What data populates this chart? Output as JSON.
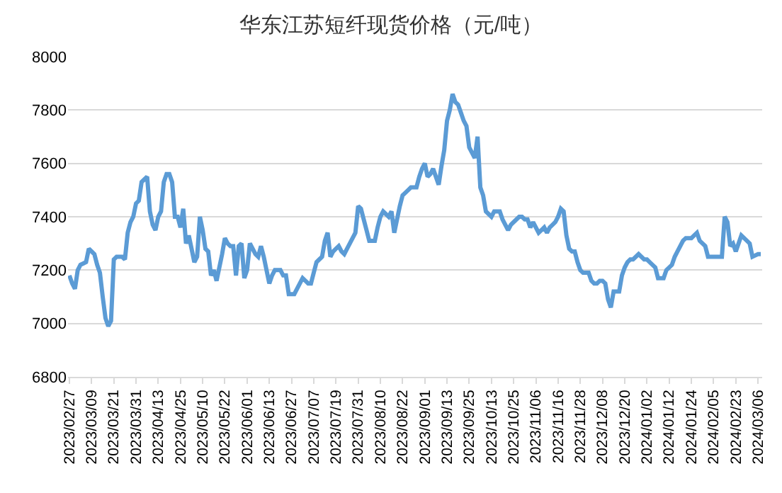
{
  "chart_data": {
    "type": "line",
    "title": "华东江苏短纤现货价格（元/吨）",
    "categories": [
      "2023/02/27",
      null,
      null,
      null,
      null,
      null,
      null,
      null,
      "2023/03/09",
      null,
      null,
      null,
      null,
      null,
      null,
      null,
      "2023/03/21",
      null,
      null,
      null,
      null,
      null,
      null,
      null,
      "2023/03/31",
      null,
      null,
      null,
      null,
      null,
      null,
      null,
      "2023/04/13",
      null,
      null,
      null,
      null,
      null,
      null,
      null,
      "2023/04/25",
      null,
      null,
      null,
      null,
      null,
      null,
      null,
      "2023/05/10",
      null,
      null,
      null,
      null,
      null,
      null,
      null,
      "2023/05/22",
      null,
      null,
      null,
      null,
      null,
      null,
      null,
      "2023/06/01",
      null,
      null,
      null,
      null,
      null,
      null,
      null,
      "2023/06/13",
      null,
      null,
      null,
      null,
      null,
      null,
      null,
      "2023/06/27",
      null,
      null,
      null,
      null,
      null,
      null,
      null,
      "2023/07/07",
      null,
      null,
      null,
      null,
      null,
      null,
      null,
      "2023/07/19",
      null,
      null,
      null,
      null,
      null,
      null,
      null,
      "2023/07/31",
      null,
      null,
      null,
      null,
      null,
      null,
      null,
      "2023/08/10",
      null,
      null,
      null,
      null,
      null,
      null,
      null,
      "2023/08/22",
      null,
      null,
      null,
      null,
      null,
      null,
      null,
      "2023/09/01",
      null,
      null,
      null,
      null,
      null,
      null,
      null,
      "2023/09/13",
      null,
      null,
      null,
      null,
      null,
      null,
      null,
      "2023/09/25",
      null,
      null,
      null,
      null,
      null,
      null,
      null,
      "2023/10/13",
      null,
      null,
      null,
      null,
      null,
      null,
      null,
      "2023/10/25",
      null,
      null,
      null,
      null,
      null,
      null,
      null,
      "2023/11/06",
      null,
      null,
      null,
      null,
      null,
      null,
      null,
      "2023/11/16",
      null,
      null,
      null,
      null,
      null,
      null,
      null,
      "2023/11/28",
      null,
      null,
      null,
      null,
      null,
      null,
      null,
      "2023/12/08",
      null,
      null,
      null,
      null,
      null,
      null,
      null,
      "2023/12/20",
      null,
      null,
      null,
      null,
      null,
      null,
      null,
      "2024/01/02",
      null,
      null,
      null,
      null,
      null,
      null,
      null,
      "2024/01/12",
      null,
      null,
      null,
      null,
      null,
      null,
      null,
      "2024/01/24",
      null,
      null,
      null,
      null,
      null,
      null,
      null,
      "2024/02/05",
      null,
      null,
      null,
      null,
      null,
      null,
      null,
      "2024/02/23",
      null,
      null,
      null,
      null,
      null,
      null,
      null,
      "2024/03/06",
      null
    ],
    "series": [
      {
        "color": "#5b9bd5",
        "values": [
          7180,
          7150,
          7130,
          7200,
          7220,
          7225,
          7230,
          7280,
          7270,
          7260,
          7220,
          7190,
          7100,
          7020,
          6990,
          7010,
          7240,
          7250,
          7250,
          7250,
          7240,
          7340,
          7380,
          7400,
          7450,
          7460,
          7530,
          7540,
          7550,
          7420,
          7370,
          7350,
          7400,
          7420,
          7530,
          7560,
          7560,
          7530,
          7400,
          7400,
          7360,
          7430,
          7300,
          7330,
          7280,
          7230,
          7250,
          7400,
          7350,
          7280,
          7270,
          7180,
          7200,
          7160,
          7210,
          7260,
          7320,
          7300,
          7290,
          7290,
          7180,
          7290,
          7300,
          7170,
          7200,
          7300,
          7280,
          7260,
          7250,
          7290,
          7250,
          7200,
          7150,
          7180,
          7200,
          7200,
          7200,
          7180,
          7180,
          7110,
          7110,
          7110,
          7130,
          7150,
          7170,
          7160,
          7150,
          7150,
          7190,
          7230,
          7240,
          7250,
          7310,
          7340,
          7250,
          7270,
          7280,
          7290,
          7270,
          7260,
          7280,
          7300,
          7320,
          7340,
          7440,
          7430,
          7390,
          7350,
          7310,
          7310,
          7310,
          7360,
          7400,
          7420,
          7410,
          7400,
          7420,
          7340,
          7390,
          7440,
          7480,
          7490,
          7500,
          7510,
          7510,
          7510,
          7550,
          7580,
          7600,
          7550,
          7560,
          7580,
          7550,
          7520,
          7590,
          7650,
          7760,
          7800,
          7860,
          7830,
          7820,
          7790,
          7760,
          7740,
          7660,
          7640,
          7620,
          7700,
          7510,
          7480,
          7420,
          7410,
          7400,
          7420,
          7420,
          7420,
          7390,
          7370,
          7350,
          7370,
          7380,
          7390,
          7400,
          7400,
          7390,
          7390,
          7360,
          7380,
          7360,
          7340,
          7350,
          7360,
          7340,
          7360,
          7370,
          7380,
          7400,
          7430,
          7420,
          7330,
          7280,
          7270,
          7270,
          7230,
          7200,
          7190,
          7190,
          7190,
          7160,
          7150,
          7150,
          7160,
          7160,
          7150,
          7090,
          7060,
          7120,
          7120,
          7120,
          7180,
          7210,
          7230,
          7240,
          7240,
          7250,
          7260,
          7250,
          7240,
          7240,
          7230,
          7220,
          7210,
          7170,
          7170,
          7170,
          7200,
          7210,
          7220,
          7250,
          7270,
          7290,
          7310,
          7320,
          7320,
          7320,
          7330,
          7340,
          7310,
          7300,
          7290,
          7250,
          7250,
          7250,
          7250,
          7250,
          7250,
          7400,
          7380,
          7290,
          7300,
          7270,
          7300,
          7330,
          7320,
          7310,
          7300,
          7250,
          7255,
          7260,
          7260
        ]
      }
    ],
    "ylim": [
      6800,
      8000
    ],
    "yticks": [
      6800,
      7000,
      7200,
      7400,
      7600,
      7800,
      8000
    ],
    "grid": "y",
    "marker": "none",
    "line_style": "solid"
  }
}
